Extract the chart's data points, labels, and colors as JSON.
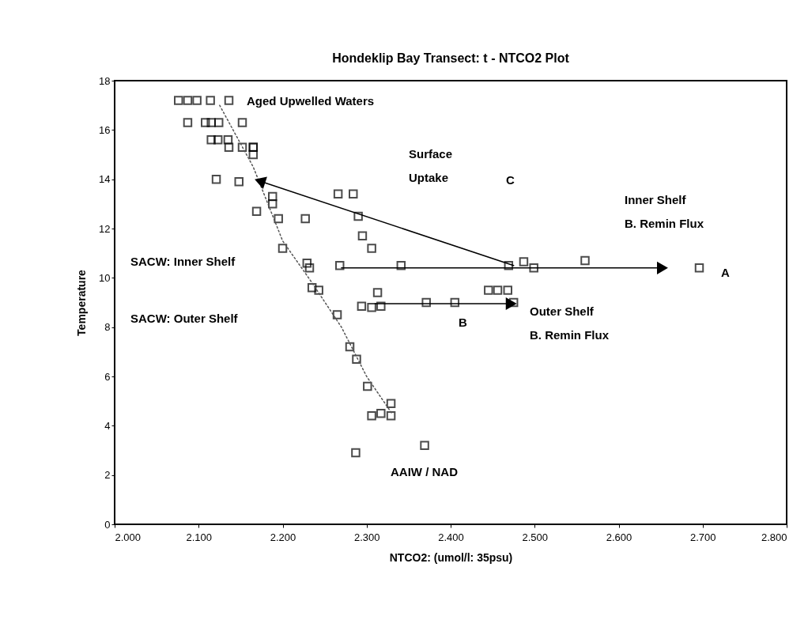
{
  "chart_data": {
    "type": "scatter",
    "title": "Hondeklip Bay Transect: t - NTCO2 Plot",
    "xlabel": "NTCO2: (umol/l: 35psu)",
    "ylabel": "Temperature",
    "xlim": [
      2.0,
      2.8
    ],
    "ylim": [
      0,
      18
    ],
    "xticks": [
      {
        "value": 2.0,
        "label": "2.000"
      },
      {
        "value": 2.1,
        "label": "2.100"
      },
      {
        "value": 2.2,
        "label": "2.200"
      },
      {
        "value": 2.3,
        "label": "2.300"
      },
      {
        "value": 2.4,
        "label": "2.400"
      },
      {
        "value": 2.5,
        "label": "2.500"
      },
      {
        "value": 2.6,
        "label": "2.600"
      },
      {
        "value": 2.7,
        "label": "2.700"
      },
      {
        "value": 2.8,
        "label": "2.800"
      }
    ],
    "yticks": [
      0,
      2,
      4,
      6,
      8,
      10,
      12,
      14,
      16,
      18
    ],
    "grid": false,
    "series": [
      {
        "marker": "square",
        "color": "#000000",
        "x": [
          2.076,
          2.087,
          2.098,
          2.114,
          2.136,
          2.087,
          2.108,
          2.115,
          2.124,
          2.152,
          2.115,
          2.123,
          2.135,
          2.136,
          2.152,
          2.165,
          2.165,
          2.165,
          2.121,
          2.148,
          2.188,
          2.188,
          2.169,
          2.195,
          2.227,
          2.2,
          2.266,
          2.284,
          2.29,
          2.295,
          2.306,
          2.229,
          2.232,
          2.268,
          2.341,
          2.235,
          2.243,
          2.313,
          2.294,
          2.306,
          2.317,
          2.265,
          2.28,
          2.288,
          2.301,
          2.329,
          2.306,
          2.317,
          2.329,
          2.369,
          2.287,
          2.469,
          2.487,
          2.499,
          2.56,
          2.696,
          2.445,
          2.456,
          2.468,
          2.371,
          2.405,
          2.475
        ],
        "values": [
          17.2,
          17.2,
          17.2,
          17.2,
          17.2,
          16.3,
          16.3,
          16.3,
          16.3,
          16.3,
          15.6,
          15.6,
          15.6,
          15.3,
          15.3,
          15.3,
          15.3,
          15.0,
          14.0,
          13.9,
          13.3,
          13.0,
          12.7,
          12.4,
          12.4,
          11.2,
          13.4,
          13.4,
          12.5,
          11.7,
          11.2,
          10.6,
          10.4,
          10.5,
          10.5,
          9.6,
          9.5,
          9.4,
          8.85,
          8.8,
          8.85,
          8.5,
          7.2,
          6.7,
          5.6,
          4.9,
          4.4,
          4.5,
          4.4,
          3.2,
          2.9,
          10.5,
          10.65,
          10.4,
          10.7,
          10.4,
          9.5,
          9.5,
          9.5,
          9.0,
          9.0,
          9.0
        ]
      },
      {
        "type": "line",
        "color": "#555555",
        "line_style": "dotted",
        "x": [
          2.125,
          2.165,
          2.2,
          2.235,
          2.27,
          2.3,
          2.33
        ],
        "values": [
          17.0,
          14.5,
          11.5,
          9.8,
          8.0,
          6.0,
          4.5
        ]
      },
      {
        "type": "line",
        "color": "#000000",
        "line_style": "solid",
        "marker": "triangle",
        "x": [
          2.475,
          2.175
        ],
        "values": [
          10.5,
          13.9
        ]
      },
      {
        "type": "line",
        "color": "#000000",
        "line_style": "solid",
        "marker": "triangle",
        "x": [
          2.27,
          2.65
        ],
        "values": [
          10.4,
          10.4
        ]
      },
      {
        "type": "line",
        "color": "#000000",
        "line_style": "solid",
        "marker": "triangle",
        "x": [
          2.31,
          2.47
        ],
        "values": [
          8.95,
          8.95
        ]
      }
    ],
    "annotations": [
      "Aged Upwelled Waters",
      "Surface\nUptake",
      "C",
      "Inner Shelf\nB. Remin Flux",
      "A",
      "SACW: Inner Shelf",
      "SACW: Outer Shelf",
      "B",
      "Outer Shelf\nB. Remin Flux",
      "AAIW / NAD"
    ]
  }
}
